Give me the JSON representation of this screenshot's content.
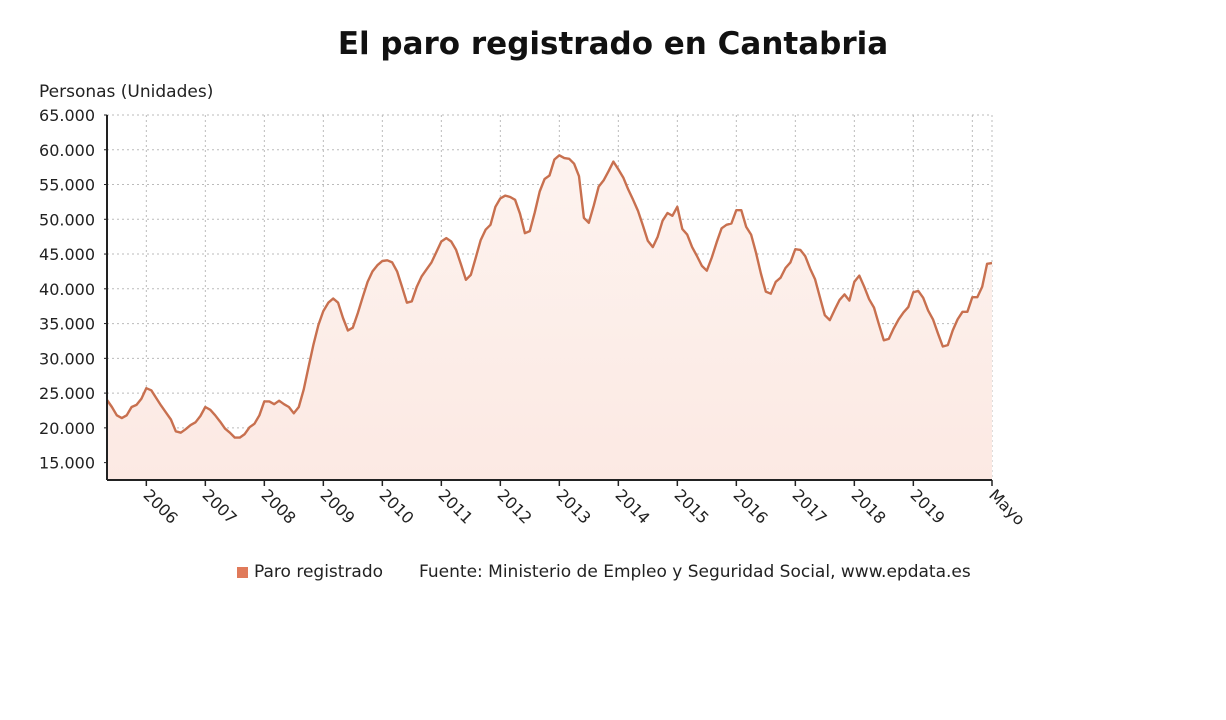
{
  "chart_data": {
    "type": "area",
    "title": "El paro registrado en Cantabria",
    "ylabel": "Personas (Unidades)",
    "xlabel": "",
    "ylim": [
      12500,
      65000
    ],
    "yticks": [
      15000,
      20000,
      25000,
      30000,
      35000,
      40000,
      45000,
      50000,
      55000,
      60000,
      65000
    ],
    "ytick_labels": [
      "15.000",
      "20.000",
      "25.000",
      "30.000",
      "35.000",
      "40.000",
      "45.000",
      "50.000",
      "55.000",
      "60.000",
      "65.000"
    ],
    "xrange": [
      "2005-05",
      "2020-05"
    ],
    "xticks": [
      "2006-01",
      "2007-01",
      "2008-01",
      "2009-01",
      "2010-01",
      "2011-01",
      "2012-01",
      "2013-01",
      "2014-01",
      "2015-01",
      "2016-01",
      "2017-01",
      "2018-01",
      "2019-01",
      "2020-05"
    ],
    "xtick_labels": [
      "2006",
      "2007",
      "2008",
      "2009",
      "2010",
      "2011",
      "2012",
      "2013",
      "2014",
      "2015",
      "2016",
      "2017",
      "2018",
      "2019",
      "Mayo"
    ],
    "grid": true,
    "legend_position": "bottom",
    "colors": {
      "line": "#c8704f",
      "fill": "#fdebe5",
      "legend": "#e07a5a"
    },
    "series": [
      {
        "name": "Paro registrado",
        "x_start": "2005-05",
        "frequency": "monthly",
        "values": [
          24000,
          23000,
          21800,
          21400,
          21800,
          23000,
          23300,
          24200,
          25700,
          25400,
          24300,
          23200,
          22200,
          21200,
          19500,
          19300,
          19800,
          20400,
          20800,
          21700,
          23000,
          22600,
          21800,
          20900,
          19900,
          19300,
          18600,
          18600,
          19100,
          20100,
          20600,
          21800,
          23800,
          23800,
          23400,
          23900,
          23400,
          23000,
          22100,
          23000,
          25500,
          28800,
          32000,
          34800,
          36800,
          38000,
          38600,
          38000,
          35800,
          34000,
          34400,
          36500,
          38800,
          41000,
          42500,
          43400,
          44000,
          44100,
          43800,
          42500,
          40300,
          38000,
          38200,
          40300,
          41800,
          42800,
          43800,
          45300,
          46800,
          47300,
          46800,
          45600,
          43500,
          41300,
          42000,
          44500,
          47000,
          48500,
          49200,
          51800,
          53000,
          53400,
          53200,
          52800,
          50800,
          48000,
          48300,
          51000,
          54000,
          55800,
          56300,
          58600,
          59200,
          58800,
          58700,
          58000,
          56200,
          50200,
          49500,
          52000,
          54700,
          55600,
          56900,
          58300,
          57200,
          56000,
          54300,
          52800,
          51200,
          49100,
          46900,
          46000,
          47500,
          49800,
          50900,
          50500,
          51800,
          48600,
          47800,
          46000,
          44700,
          43300,
          42600,
          44500,
          46700,
          48700,
          49200,
          49400,
          51300,
          51300,
          48900,
          47800,
          45200,
          42200,
          39600,
          39300,
          41000,
          41600,
          43000,
          43800,
          45700,
          45600,
          44700,
          42900,
          41400,
          38800,
          36200,
          35500,
          37000,
          38400,
          39200,
          38300,
          41000,
          41900,
          40300,
          38500,
          37300,
          34900,
          32600,
          32800,
          34300,
          35600,
          36600,
          37400,
          39500,
          39700,
          38700,
          36900,
          35600,
          33600,
          31700,
          31900,
          34000,
          35600,
          36700,
          36700,
          38800,
          38800,
          40300,
          43600,
          43700
        ]
      }
    ],
    "source": "Fuente: Ministerio de Empleo y Seguridad Social, www.epdata.es"
  }
}
